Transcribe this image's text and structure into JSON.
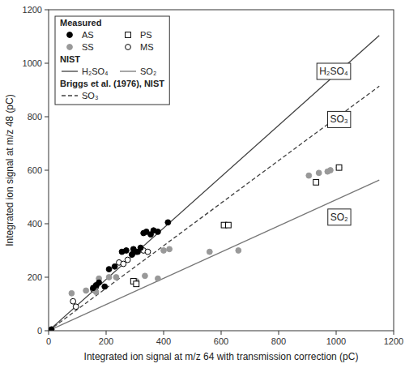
{
  "chart_data": {
    "type": "scatter",
    "xlabel": "Integrated ion signal at m/z 64 with transmission correction (pC)",
    "ylabel": "Integrated ion signal at m/z 48 (pC)",
    "xlim": [
      0,
      1200
    ],
    "ylim": [
      0,
      1200
    ],
    "xticks": [
      0,
      200,
      400,
      600,
      800,
      1000,
      1200
    ],
    "yticks": [
      0,
      200,
      400,
      600,
      800,
      1000,
      1200
    ],
    "grid": false,
    "legend": "upper left",
    "series": [
      {
        "name": "AS",
        "group": "Measured",
        "type": "scatter",
        "marker": "circle",
        "color": "#000000",
        "x": [
          10,
          155,
          165,
          175,
          195,
          210,
          230,
          255,
          270,
          290,
          295,
          305,
          310,
          320,
          330,
          340,
          355,
          365,
          380,
          415
        ],
        "values": [
          5,
          160,
          170,
          180,
          165,
          230,
          240,
          295,
          300,
          285,
          305,
          295,
          295,
          310,
          365,
          370,
          360,
          375,
          370,
          405
        ]
      },
      {
        "name": "PS",
        "group": "Measured",
        "type": "scatter",
        "marker": "open-square",
        "color": "#000000",
        "x": [
          295,
          305,
          610,
          625,
          930,
          1010
        ],
        "values": [
          185,
          175,
          395,
          395,
          555,
          610
        ]
      },
      {
        "name": "SS",
        "group": "Measured",
        "type": "scatter",
        "marker": "circle",
        "color": "#999999",
        "x": [
          80,
          130,
          165,
          175,
          210,
          235,
          305,
          335,
          380,
          400,
          420,
          560,
          660,
          905,
          940,
          970,
          980,
          1010
        ],
        "values": [
          140,
          150,
          145,
          195,
          200,
          200,
          185,
          205,
          195,
          300,
          305,
          295,
          300,
          580,
          590,
          595,
          600,
          610
        ]
      },
      {
        "name": "MS",
        "group": "Measured",
        "type": "scatter",
        "marker": "open-circle",
        "color": "#000000",
        "x": [
          85,
          95,
          155,
          165,
          245,
          260,
          275,
          290,
          330,
          345
        ],
        "values": [
          110,
          90,
          155,
          165,
          255,
          250,
          265,
          285,
          300,
          295
        ]
      },
      {
        "name": "H₂SO₄",
        "group": "NIST",
        "type": "line",
        "line_style": "solid",
        "color": "#404040",
        "x": [
          0,
          1150
        ],
        "values": [
          0,
          1104
        ]
      },
      {
        "name": "SO₂",
        "group": "NIST",
        "type": "line",
        "line_style": "solid",
        "color": "#777777",
        "x": [
          0,
          1150
        ],
        "values": [
          0,
          563.5
        ]
      },
      {
        "name": "SO₃",
        "group": "Briggs et al. (1976), NIST",
        "type": "line",
        "line_style": "dashed",
        "color": "#404040",
        "x": [
          0,
          1150
        ],
        "values": [
          0,
          914.25
        ]
      }
    ],
    "annotations": [
      {
        "text": "H₂SO₄",
        "x": 1050,
        "y": 1000
      },
      {
        "text": "SO₃",
        "x": 1050,
        "y": 820
      },
      {
        "text": "SO₂",
        "x": 1050,
        "y": 455
      }
    ]
  }
}
